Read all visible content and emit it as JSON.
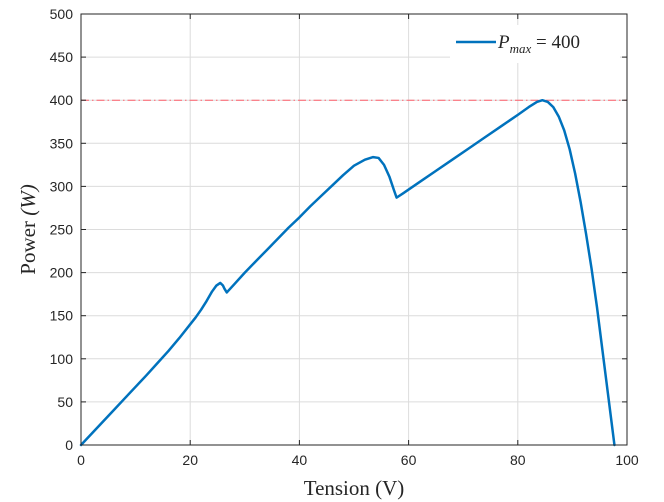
{
  "chart_data": {
    "type": "line",
    "title": "",
    "xlabel": "Tension (V)",
    "ylabel_prefix": "Power ",
    "ylabel_math": "(W)",
    "xlim": [
      0,
      100
    ],
    "ylim": [
      0,
      500
    ],
    "xticks": [
      0,
      20,
      40,
      60,
      80,
      100
    ],
    "yticks": [
      0,
      50,
      100,
      150,
      200,
      250,
      300,
      350,
      400,
      450,
      500
    ],
    "grid": true,
    "legend_position": "top-right",
    "legend": {
      "symbol": "P",
      "subscript": "max",
      "equals_text": " = 400"
    },
    "series": [
      {
        "name": "P_max = 400",
        "color": "#0072BD",
        "style": "solid",
        "points": [
          [
            0,
            0
          ],
          [
            2,
            13.5
          ],
          [
            4,
            27
          ],
          [
            6,
            40.5
          ],
          [
            8,
            54
          ],
          [
            10,
            67.5
          ],
          [
            12,
            81
          ],
          [
            14,
            95
          ],
          [
            16,
            109
          ],
          [
            18,
            124
          ],
          [
            20,
            140
          ],
          [
            21,
            148
          ],
          [
            22,
            157
          ],
          [
            23,
            167
          ],
          [
            24,
            178
          ],
          [
            24.8,
            185
          ],
          [
            25.5,
            188
          ],
          [
            26,
            185
          ],
          [
            26.3,
            181
          ],
          [
            26.7,
            177
          ],
          [
            28,
            186
          ],
          [
            30,
            200
          ],
          [
            32,
            213
          ],
          [
            34,
            226
          ],
          [
            36,
            239
          ],
          [
            38,
            252
          ],
          [
            40,
            264
          ],
          [
            42,
            277
          ],
          [
            44,
            289
          ],
          [
            46,
            301
          ],
          [
            48,
            313
          ],
          [
            50,
            324
          ],
          [
            52,
            331
          ],
          [
            53.5,
            334
          ],
          [
            54.5,
            333
          ],
          [
            55.5,
            325
          ],
          [
            56.5,
            311
          ],
          [
            57.3,
            296
          ],
          [
            57.8,
            287
          ],
          [
            59,
            292
          ],
          [
            62,
            305
          ],
          [
            65,
            318
          ],
          [
            68,
            331
          ],
          [
            71,
            344
          ],
          [
            74,
            357
          ],
          [
            77,
            370
          ],
          [
            80,
            383
          ],
          [
            82,
            392
          ],
          [
            83.5,
            398
          ],
          [
            84.5,
            400
          ],
          [
            85.5,
            398
          ],
          [
            86.5,
            392
          ],
          [
            87.5,
            381
          ],
          [
            88.5,
            365
          ],
          [
            89.5,
            343
          ],
          [
            90.5,
            315
          ],
          [
            91.5,
            282
          ],
          [
            92.5,
            245
          ],
          [
            93.5,
            205
          ],
          [
            94.5,
            160
          ],
          [
            95.5,
            110
          ],
          [
            96.5,
            60
          ],
          [
            97.2,
            25
          ],
          [
            97.7,
            0
          ]
        ]
      }
    ],
    "reference_lines": [
      {
        "orientation": "horizontal",
        "y": 400,
        "color": "#FF5F6B",
        "style": "dash-dot"
      }
    ]
  }
}
